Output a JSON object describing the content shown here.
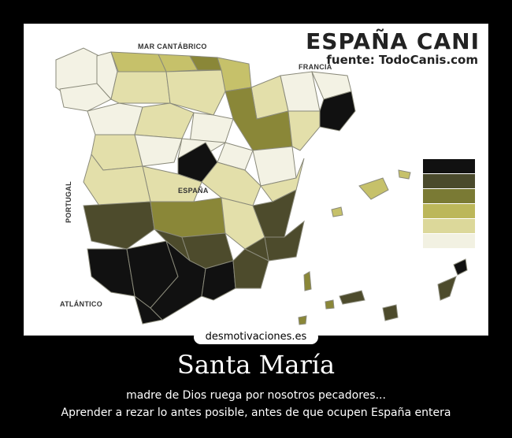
{
  "map": {
    "title": "ESPAÑA CANI",
    "source": "fuente: TodoCanis.com",
    "labels": {
      "sea_north": "MAR CANTÁBRICO",
      "france": "FRANCIA",
      "spain": "ESPAÑA",
      "portugal": "PORTUGAL",
      "ocean": "ATLÁNTICO"
    },
    "legend_colors": [
      "#111111",
      "#4a4a2c",
      "#7a7a34",
      "#bcb75a",
      "#dcd89a",
      "#f2f1e2"
    ],
    "region_colors": {
      "darkest": "#111111",
      "dark": "#4d4b2c",
      "olive": "#8a8738",
      "mustard": "#c6c16a",
      "light": "#e3dfaa",
      "pale": "#f3f2e4"
    },
    "sea_color": "#ffffff",
    "border_color": "#8a8a7a"
  },
  "site": {
    "watermark": "desmotivaciones.es"
  },
  "poster": {
    "title": "Santa María",
    "line1": "madre de Dios ruega por nosotros pecadores...",
    "line2": "Aprender a rezar lo antes posible, antes de que ocupen España entera"
  }
}
